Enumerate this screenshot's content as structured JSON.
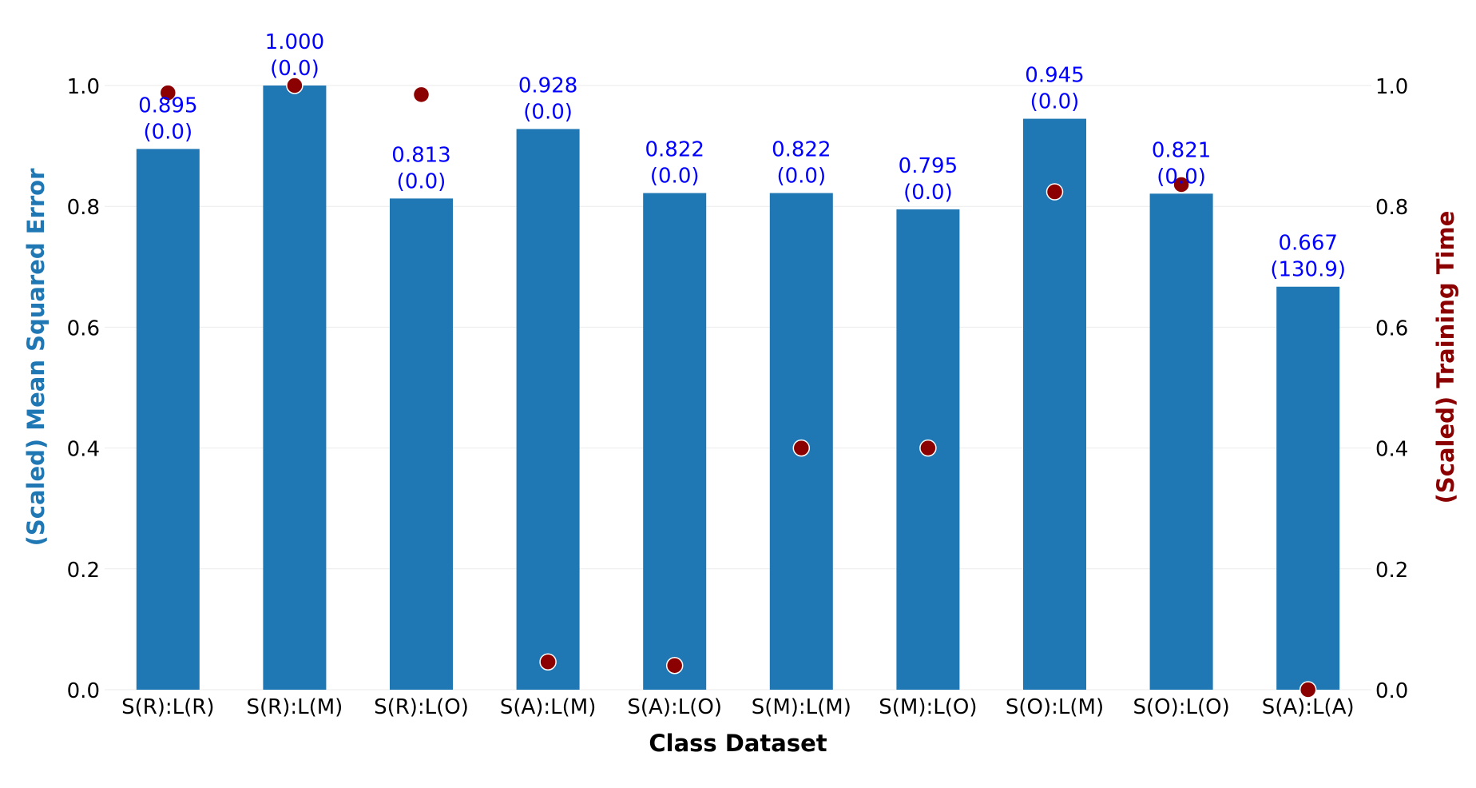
{
  "chart_data": {
    "type": "bar",
    "title": "",
    "xlabel": "Class Dataset",
    "ylabel": "(Scaled) Mean Squared Error",
    "y2label": "(Scaled) Training Time",
    "ylim": [
      0,
      1.0
    ],
    "y2lim": [
      0,
      1.0
    ],
    "yticks": [
      "0.0",
      "0.2",
      "0.4",
      "0.6",
      "0.8",
      "1.0"
    ],
    "grid": true,
    "legend": "none",
    "categories": [
      "S(R):L(R)",
      "S(R):L(M)",
      "S(R):L(O)",
      "S(A):L(M)",
      "S(A):L(O)",
      "S(M):L(M)",
      "S(M):L(O)",
      "S(O):L(M)",
      "S(O):L(O)",
      "S(A):L(A)"
    ],
    "series": [
      {
        "kind": "bar",
        "values": [
          0.895,
          1.0,
          0.813,
          0.928,
          0.822,
          0.822,
          0.795,
          0.945,
          0.821,
          0.667
        ],
        "labels": [
          "0.895",
          "1.000",
          "0.813",
          "0.928",
          "0.822",
          "0.822",
          "0.795",
          "0.945",
          "0.821",
          "0.667"
        ],
        "sublabels": [
          "(0.0)",
          "(0.0)",
          "(0.0)",
          "(0.0)",
          "(0.0)",
          "(0.0)",
          "(0.0)",
          "(0.0)",
          "(0.0)",
          "(130.9)"
        ]
      },
      {
        "kind": "scatter",
        "axis": "right",
        "values": [
          0.988,
          1.0,
          0.985,
          0.046,
          0.04,
          0.4,
          0.4,
          0.824,
          0.836,
          0.0
        ]
      }
    ],
    "colors": {
      "bar": "#1f77b4",
      "scatter": "#8b0000",
      "bar_label": "#0000ff",
      "left_axis_label": "#1f77b4",
      "right_axis_label": "#8b0000",
      "grid": "#ebebeb"
    }
  }
}
